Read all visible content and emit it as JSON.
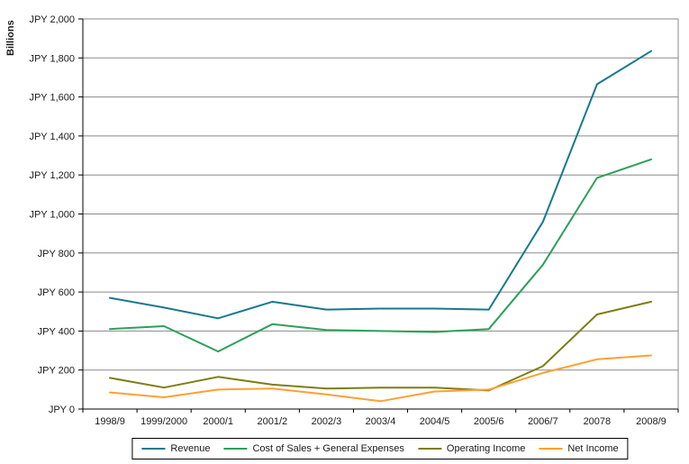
{
  "chart_data": {
    "type": "line",
    "title": "",
    "ylabel": "Billions",
    "xlabel": "",
    "ylim": [
      0,
      2000
    ],
    "grid": true,
    "legend_position": "bottom",
    "gridline_color": "#8a8a8a",
    "axis_color": "#000000",
    "right_border_color": "#8a8a8a",
    "text_color": "#1a1a1a",
    "y_ticks": [
      {
        "value": 0,
        "label": "JPY 0"
      },
      {
        "value": 200,
        "label": "JPY 200"
      },
      {
        "value": 400,
        "label": "JPY 400"
      },
      {
        "value": 600,
        "label": "JPY 600"
      },
      {
        "value": 800,
        "label": "JPY 800"
      },
      {
        "value": 1000,
        "label": "JPY 1,000"
      },
      {
        "value": 1200,
        "label": "JPY 1,200"
      },
      {
        "value": 1400,
        "label": "JPY 1,400"
      },
      {
        "value": 1600,
        "label": "JPY 1,600"
      },
      {
        "value": 1800,
        "label": "JPY 1,800"
      },
      {
        "value": 2000,
        "label": "JPY 2,000"
      }
    ],
    "categories": [
      "1998/9",
      "1999/2000",
      "2000/1",
      "2001/2",
      "2002/3",
      "2003/4",
      "2004/5",
      "2005/6",
      "2006/7",
      "20078",
      "2008/9"
    ],
    "series": [
      {
        "name": "Revenue",
        "color": "#17798c",
        "values": [
          570,
          520,
          465,
          550,
          510,
          515,
          515,
          510,
          960,
          1665,
          1835
        ]
      },
      {
        "name": "Cost of Sales + General Expenses",
        "color": "#2ca05a",
        "values": [
          410,
          425,
          295,
          435,
          405,
          400,
          395,
          410,
          740,
          1185,
          1280
        ]
      },
      {
        "name": "Operating Income",
        "color": "#7e7d14",
        "values": [
          160,
          110,
          165,
          125,
          105,
          110,
          110,
          95,
          220,
          485,
          550
        ]
      },
      {
        "name": "Net Income",
        "color": "#ffa033",
        "values": [
          85,
          60,
          100,
          105,
          75,
          40,
          90,
          100,
          185,
          255,
          275
        ]
      }
    ]
  }
}
